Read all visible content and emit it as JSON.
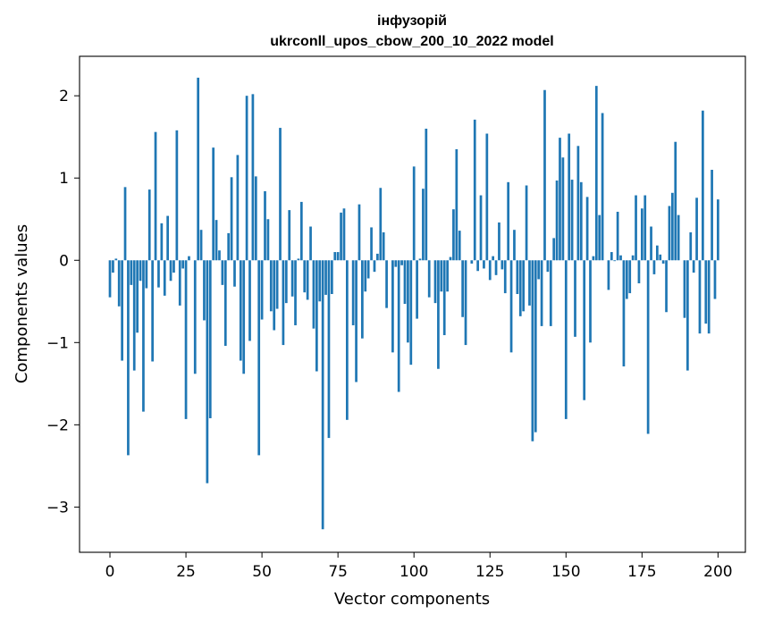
{
  "chart_data": {
    "type": "bar",
    "title": "інфузорій",
    "subtitle": "ukrconll_upos_cbow_200_10_2022 model",
    "xlabel": "Vector components",
    "ylabel": "Components values",
    "xlim": [
      -10,
      209
    ],
    "ylim": [
      -3.55,
      2.48
    ],
    "xticks": [
      0,
      25,
      50,
      75,
      100,
      125,
      150,
      175,
      200
    ],
    "yticks": [
      -3,
      -2,
      -1,
      0,
      1,
      2
    ],
    "xtick_labels": [
      "0",
      "25",
      "50",
      "75",
      "100",
      "125",
      "150",
      "175",
      "200"
    ],
    "ytick_labels": [
      "−3",
      "−2",
      "−1",
      "0",
      "1",
      "2"
    ],
    "bar_color": "#1f77b4",
    "grid": false,
    "values": [
      -0.45,
      -0.15,
      0.02,
      -0.56,
      -1.22,
      0.89,
      -2.37,
      -0.3,
      -1.34,
      -0.88,
      -0.25,
      -1.84,
      -0.34,
      0.86,
      -1.23,
      1.56,
      -0.33,
      0.45,
      -0.43,
      0.54,
      -0.25,
      -0.15,
      1.58,
      -0.55,
      -0.1,
      -1.93,
      0.05,
      0.0,
      -1.38,
      2.22,
      0.37,
      -0.73,
      -2.71,
      -1.92,
      1.37,
      0.49,
      0.12,
      -0.3,
      -1.04,
      0.33,
      1.01,
      -0.32,
      1.28,
      -1.22,
      -1.38,
      2.0,
      -0.98,
      2.02,
      1.02,
      -2.37,
      -0.72,
      0.84,
      0.5,
      -0.62,
      -0.85,
      -0.59,
      1.61,
      -1.03,
      -0.52,
      0.61,
      -0.44,
      -0.79,
      0.02,
      0.71,
      -0.39,
      -0.48,
      0.41,
      -0.83,
      -1.35,
      -0.5,
      -3.27,
      -0.42,
      -2.16,
      -0.41,
      0.1,
      0.1,
      0.58,
      0.63,
      -1.94,
      0.0,
      -0.79,
      -1.48,
      0.68,
      -0.95,
      -0.38,
      -0.22,
      0.4,
      -0.14,
      0.08,
      0.88,
      0.34,
      -0.58,
      0.0,
      -1.12,
      -0.08,
      -1.6,
      -0.06,
      -0.53,
      -1.0,
      -1.27,
      1.14,
      -0.71,
      0.02,
      0.87,
      1.6,
      -0.45,
      0.0,
      -0.52,
      -1.32,
      -0.38,
      -0.91,
      -0.38,
      0.04,
      0.62,
      1.35,
      0.36,
      -0.69,
      -1.03,
      0.0,
      -0.04,
      1.71,
      -0.13,
      0.79,
      -0.1,
      1.54,
      -0.24,
      0.05,
      -0.18,
      0.46,
      -0.11,
      -0.4,
      0.95,
      -1.12,
      0.37,
      -0.41,
      -0.68,
      -0.62,
      0.91,
      -0.55,
      -2.2,
      -2.09,
      -0.23,
      -0.8,
      2.07,
      -0.14,
      -0.8,
      0.27,
      0.97,
      1.49,
      1.25,
      -1.93,
      1.54,
      0.98,
      -0.93,
      1.39,
      0.95,
      -1.7,
      0.77,
      -1.0,
      0.05,
      2.12,
      0.55,
      1.79,
      0.0,
      -0.36,
      0.1,
      -0.01,
      0.59,
      0.06,
      -1.29,
      -0.47,
      -0.4,
      0.06,
      0.79,
      -0.28,
      0.63,
      0.79,
      -2.11,
      0.41,
      -0.17,
      0.18,
      0.07,
      -0.04,
      -0.63,
      0.66,
      0.82,
      1.44,
      0.55,
      0.0,
      -0.7,
      -1.34,
      0.34,
      -0.15,
      0.76,
      -0.89,
      1.82,
      -0.77,
      -0.89,
      1.1,
      -0.47,
      0.74
    ]
  }
}
